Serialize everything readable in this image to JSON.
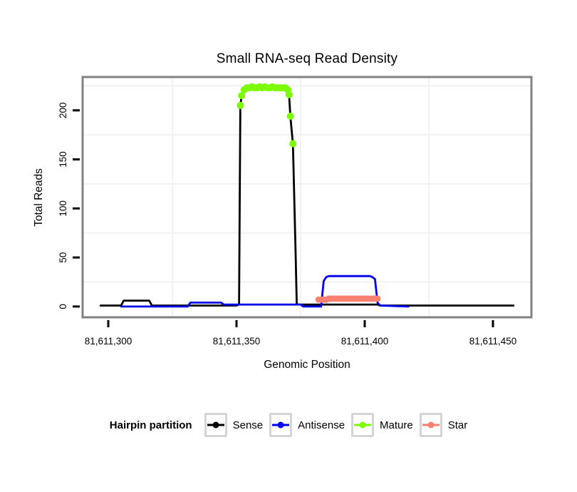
{
  "title": "Small RNA-seq Read Density",
  "axes": {
    "x_label": "Genomic Position",
    "y_label": "Total Reads",
    "x_ticks": [
      {
        "value": 81611300,
        "label": "81,611,300"
      },
      {
        "value": 81611350,
        "label": "81,611,350"
      },
      {
        "value": 81611400,
        "label": "81,611,400"
      },
      {
        "value": 81611450,
        "label": "81,611,450"
      }
    ],
    "y_ticks": [
      {
        "value": 0,
        "label": "0"
      },
      {
        "value": 50,
        "label": "50"
      },
      {
        "value": 100,
        "label": "100"
      },
      {
        "value": 150,
        "label": "150"
      },
      {
        "value": 200,
        "label": "200"
      }
    ]
  },
  "legend": {
    "title": "Hairpin partition",
    "items": [
      {
        "label": "Sense",
        "color": "#000000"
      },
      {
        "label": "Antisense",
        "color": "#0000ee"
      },
      {
        "label": "Mature",
        "color": "#7cfc00"
      },
      {
        "label": "Star",
        "color": "#fa8072"
      }
    ]
  },
  "colors": {
    "plot_border": "#828282",
    "grid_minor": "#f2f2f2",
    "tick": "#000000",
    "legend_key_border": "#d4d4d4"
  },
  "chart_data": {
    "type": "line",
    "title": "Small RNA-seq Read Density",
    "xlabel": "Genomic Position",
    "ylabel": "Total Reads",
    "xlim": [
      81611290,
      81611465
    ],
    "ylim": [
      -11,
      234
    ],
    "grid": {
      "x_minor": [
        81611325,
        81611375,
        81611425
      ],
      "y_minor": [
        25,
        75,
        125,
        175,
        225
      ]
    },
    "series": [
      {
        "name": "Sense",
        "color": "#000000",
        "style": "line",
        "width": 2.8,
        "points": [
          [
            81611297,
            1
          ],
          [
            81611305,
            1
          ],
          [
            81611306,
            6
          ],
          [
            81611316,
            6
          ],
          [
            81611317,
            1
          ],
          [
            81611350,
            1
          ],
          [
            81611351,
            2
          ],
          [
            81611351.5,
            205
          ],
          [
            81611352,
            215
          ],
          [
            81611353,
            221
          ],
          [
            81611354,
            223
          ],
          [
            81611369,
            223
          ],
          [
            81611370,
            221
          ],
          [
            81611370.5,
            216
          ],
          [
            81611371,
            194
          ],
          [
            81611372,
            166
          ],
          [
            81611373,
            60
          ],
          [
            81611373.5,
            2
          ],
          [
            81611383,
            2
          ],
          [
            81611405,
            2
          ],
          [
            81611406,
            1
          ],
          [
            81611458,
            1
          ]
        ]
      },
      {
        "name": "Antisense",
        "color": "#0000ee",
        "style": "line",
        "width": 2.8,
        "points": [
          [
            81611305,
            0
          ],
          [
            81611331,
            0
          ],
          [
            81611332,
            4
          ],
          [
            81611344,
            4
          ],
          [
            81611345,
            2
          ],
          [
            81611375,
            2
          ],
          [
            81611376,
            0
          ],
          [
            81611383,
            0
          ],
          [
            81611384,
            26
          ],
          [
            81611385,
            30
          ],
          [
            81611386,
            31
          ],
          [
            81611402,
            31
          ],
          [
            81611403,
            30
          ],
          [
            81611404,
            28
          ],
          [
            81611405,
            4
          ],
          [
            81611406,
            1
          ],
          [
            81611417,
            0
          ]
        ]
      },
      {
        "name": "Mature",
        "color": "#7cfc00",
        "style": "points",
        "marker": 5,
        "points": [
          [
            81611351.5,
            205
          ],
          [
            81611352,
            215
          ],
          [
            81611353,
            221
          ],
          [
            81611354,
            223
          ],
          [
            81611355,
            223
          ],
          [
            81611356,
            224
          ],
          [
            81611357,
            223
          ],
          [
            81611358,
            223
          ],
          [
            81611359,
            224
          ],
          [
            81611360,
            223
          ],
          [
            81611361,
            224
          ],
          [
            81611362,
            223
          ],
          [
            81611363,
            223
          ],
          [
            81611364,
            224
          ],
          [
            81611365,
            223
          ],
          [
            81611366,
            223
          ],
          [
            81611367,
            223
          ],
          [
            81611368,
            223
          ],
          [
            81611369,
            223
          ],
          [
            81611370,
            221
          ],
          [
            81611370.5,
            216
          ],
          [
            81611371,
            194
          ],
          [
            81611372,
            166
          ]
        ]
      },
      {
        "name": "Star",
        "color": "#fa8072",
        "style": "line+points",
        "width": 3,
        "marker": 4.5,
        "points": [
          [
            81611382,
            7
          ],
          [
            81611383,
            7
          ],
          [
            81611384,
            7
          ],
          [
            81611385,
            7
          ],
          [
            81611386,
            8
          ],
          [
            81611387,
            8
          ],
          [
            81611388,
            8
          ],
          [
            81611389,
            8
          ],
          [
            81611390,
            8
          ],
          [
            81611391,
            8
          ],
          [
            81611392,
            8
          ],
          [
            81611393,
            8
          ],
          [
            81611394,
            8
          ],
          [
            81611395,
            8
          ],
          [
            81611396,
            8
          ],
          [
            81611397,
            8
          ],
          [
            81611398,
            8
          ],
          [
            81611399,
            8
          ],
          [
            81611400,
            8
          ],
          [
            81611401,
            8
          ],
          [
            81611402,
            8
          ],
          [
            81611403,
            8
          ],
          [
            81611404,
            8
          ],
          [
            81611405,
            8
          ]
        ]
      }
    ],
    "legend_title": "Hairpin partition",
    "legend_position": "bottom"
  }
}
